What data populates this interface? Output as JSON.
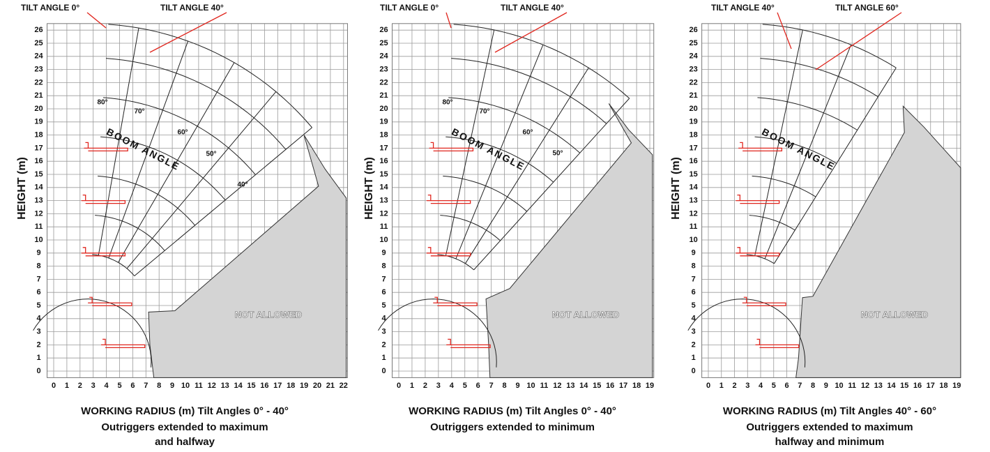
{
  "panels": [
    {
      "tilt_labels": [
        "TILT ANGLE 0°",
        "TILT ANGLE 40°"
      ],
      "y_label": "HEIGHT (m)",
      "yticks": [
        0,
        1,
        2,
        3,
        4,
        5,
        6,
        7,
        8,
        9,
        10,
        11,
        12,
        13,
        14,
        15,
        16,
        17,
        18,
        19,
        20,
        21,
        22,
        23,
        24,
        25,
        26
      ],
      "xticks": [
        0,
        1,
        2,
        3,
        4,
        5,
        6,
        7,
        8,
        9,
        10,
        11,
        12,
        13,
        14,
        15,
        16,
        17,
        18,
        19,
        20,
        21,
        22
      ],
      "boom_label": "BOOM ANGLE",
      "angle_labels": [
        "80°",
        "70°",
        "60°",
        "50°",
        "40°"
      ],
      "not_allowed": "NOT ALLOWED",
      "caption": [
        "WORKING RADIUS (m)  Tilt Angles 0° - 40°",
        "Outriggers extended to maximum",
        "and halfway"
      ]
    },
    {
      "tilt_labels": [
        "TILT ANGLE 0°",
        "TILT ANGLE 40°"
      ],
      "y_label": "HEIGHT (m)",
      "yticks": [
        0,
        1,
        2,
        3,
        4,
        5,
        6,
        7,
        8,
        9,
        10,
        11,
        12,
        13,
        14,
        15,
        16,
        17,
        18,
        19,
        20,
        21,
        22,
        23,
        24,
        25,
        26
      ],
      "xticks": [
        0,
        1,
        2,
        3,
        4,
        5,
        6,
        7,
        8,
        9,
        10,
        11,
        12,
        13,
        14,
        15,
        16,
        17,
        18,
        19
      ],
      "boom_label": "BOOM ANGLE",
      "angle_labels": [
        "80°",
        "70°",
        "60°",
        "50°"
      ],
      "not_allowed": "NOT ALLOWED",
      "caption": [
        "WORKING RADIUS (m)  Tilt Angles 0° - 40°",
        "Outriggers extended to minimum"
      ]
    },
    {
      "tilt_labels": [
        "TILT ANGLE 40°",
        "TILT ANGLE 60°"
      ],
      "y_label": "HEIGHT (m)",
      "yticks": [
        0,
        1,
        2,
        3,
        4,
        5,
        6,
        7,
        8,
        9,
        10,
        11,
        12,
        13,
        14,
        15,
        16,
        17,
        18,
        19,
        20,
        21,
        22,
        23,
        24,
        25,
        26
      ],
      "xticks": [
        0,
        1,
        2,
        3,
        4,
        5,
        6,
        7,
        8,
        9,
        10,
        11,
        12,
        13,
        14,
        15,
        16,
        17,
        18,
        19
      ],
      "boom_label": "BOOM ANGLE",
      "angle_labels": [],
      "not_allowed": "NOT ALLOWED",
      "caption": [
        "WORKING RADIUS (m)  Tilt Angles 40° - 60°",
        "Outriggers extended to maximum",
        "halfway and minimum"
      ]
    }
  ]
}
